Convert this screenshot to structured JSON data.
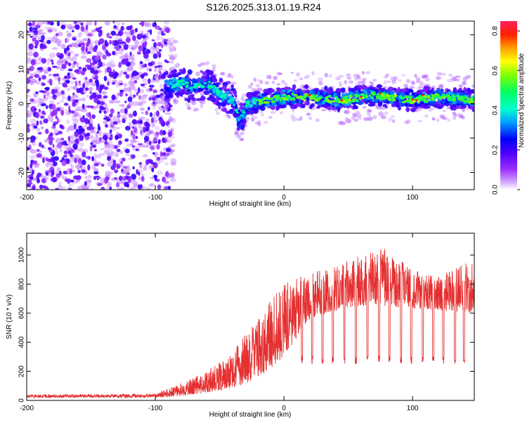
{
  "title": "S126.2025.313.01.19.R24",
  "colors": {
    "line": "#e53030",
    "background_fill": "#ffffff",
    "axis": "#000000"
  },
  "chart_data": [
    {
      "type": "heatmap",
      "xlabel": "Height of straight line (km)",
      "ylabel": "Frequency (Hz)",
      "xlim": [
        -200,
        148
      ],
      "ylim": [
        -25,
        24
      ],
      "xticks": [
        -200,
        -100,
        0,
        100
      ],
      "xtick_labels": [
        "-200",
        "-100",
        "0",
        "100"
      ],
      "yticks": [
        -20,
        -10,
        0,
        10,
        20
      ],
      "ytick_labels": [
        "-20",
        "-10",
        "0",
        "10",
        "20"
      ],
      "colorbar": {
        "label": "Normalized spectral amplitude",
        "range": [
          0,
          0.85
        ],
        "ticks": [
          0,
          0.2,
          0.4,
          0.6,
          0.8
        ],
        "tick_labels": [
          "0.0",
          "0.2",
          "0.4",
          "0.6",
          "0.8"
        ]
      },
      "signal_track": [
        {
          "x": -92,
          "f": 5
        },
        {
          "x": -80,
          "f": 6
        },
        {
          "x": -70,
          "f": 5
        },
        {
          "x": -60,
          "f": 6
        },
        {
          "x": -50,
          "f": 3
        },
        {
          "x": -40,
          "f": 1
        },
        {
          "x": -34,
          "f": -5
        },
        {
          "x": -28,
          "f": 0
        },
        {
          "x": -15,
          "f": 1
        },
        {
          "x": 0,
          "f": 2
        },
        {
          "x": 20,
          "f": 2
        },
        {
          "x": 45,
          "f": 1
        },
        {
          "x": 70,
          "f": 2.5
        },
        {
          "x": 100,
          "f": 1
        },
        {
          "x": 120,
          "f": 2
        },
        {
          "x": 148,
          "f": 1
        }
      ],
      "noise_region_x": [
        -200,
        -88
      ]
    },
    {
      "type": "line",
      "xlabel": "Height of straight line (km)",
      "ylabel": "SNR (10 * v/v)",
      "xlim": [
        -200,
        148
      ],
      "ylim": [
        0,
        1150
      ],
      "xticks": [
        -200,
        -100,
        0,
        100
      ],
      "xtick_labels": [
        "-200",
        "-100",
        "0",
        "100"
      ],
      "yticks": [
        0,
        200,
        400,
        600,
        800,
        1000
      ],
      "ytick_labels": [
        "0",
        "200",
        "400",
        "600",
        "800",
        "1000"
      ],
      "envelope": [
        {
          "x": -200,
          "base": 20,
          "peak": 40
        },
        {
          "x": -100,
          "base": 20,
          "peak": 45
        },
        {
          "x": -80,
          "base": 30,
          "peak": 120
        },
        {
          "x": -60,
          "base": 50,
          "peak": 200
        },
        {
          "x": -40,
          "base": 80,
          "peak": 330
        },
        {
          "x": -20,
          "base": 150,
          "peak": 580
        },
        {
          "x": 0,
          "base": 300,
          "peak": 800
        },
        {
          "x": 20,
          "base": 560,
          "peak": 880
        },
        {
          "x": 40,
          "base": 620,
          "peak": 920
        },
        {
          "x": 60,
          "base": 650,
          "peak": 1000
        },
        {
          "x": 80,
          "base": 650,
          "peak": 1050
        },
        {
          "x": 100,
          "base": 630,
          "peak": 900
        },
        {
          "x": 120,
          "base": 620,
          "peak": 850
        },
        {
          "x": 148,
          "base": 600,
          "peak": 980
        }
      ],
      "dip_positions": [
        14,
        22,
        30,
        38,
        47,
        56,
        65,
        74,
        82,
        91,
        99,
        108,
        116,
        124,
        133,
        140
      ],
      "dip_depth_value": 250
    }
  ]
}
